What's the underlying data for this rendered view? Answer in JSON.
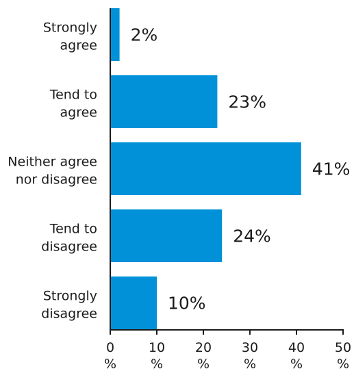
{
  "chart_data": {
    "type": "bar",
    "orientation": "horizontal",
    "categories": [
      [
        "Strongly",
        "agree"
      ],
      [
        "Tend to",
        "agree"
      ],
      [
        "Neither agree",
        "nor disagree"
      ],
      [
        "Tend to",
        "disagree"
      ],
      [
        "Strongly",
        "disagree"
      ]
    ],
    "values": [
      2,
      23,
      41,
      24,
      10
    ],
    "value_labels": [
      "2%",
      "23%",
      "41%",
      "24%",
      "10%"
    ],
    "title": "",
    "xlabel": "",
    "ylabel": "",
    "xlim": [
      0,
      50
    ],
    "x_ticks": [
      0,
      10,
      20,
      30,
      40,
      50
    ],
    "tick_suffix": "%",
    "grid": false,
    "legend": "none",
    "bar_color": "#0091d8",
    "axis_color": "#1a1a1a"
  }
}
